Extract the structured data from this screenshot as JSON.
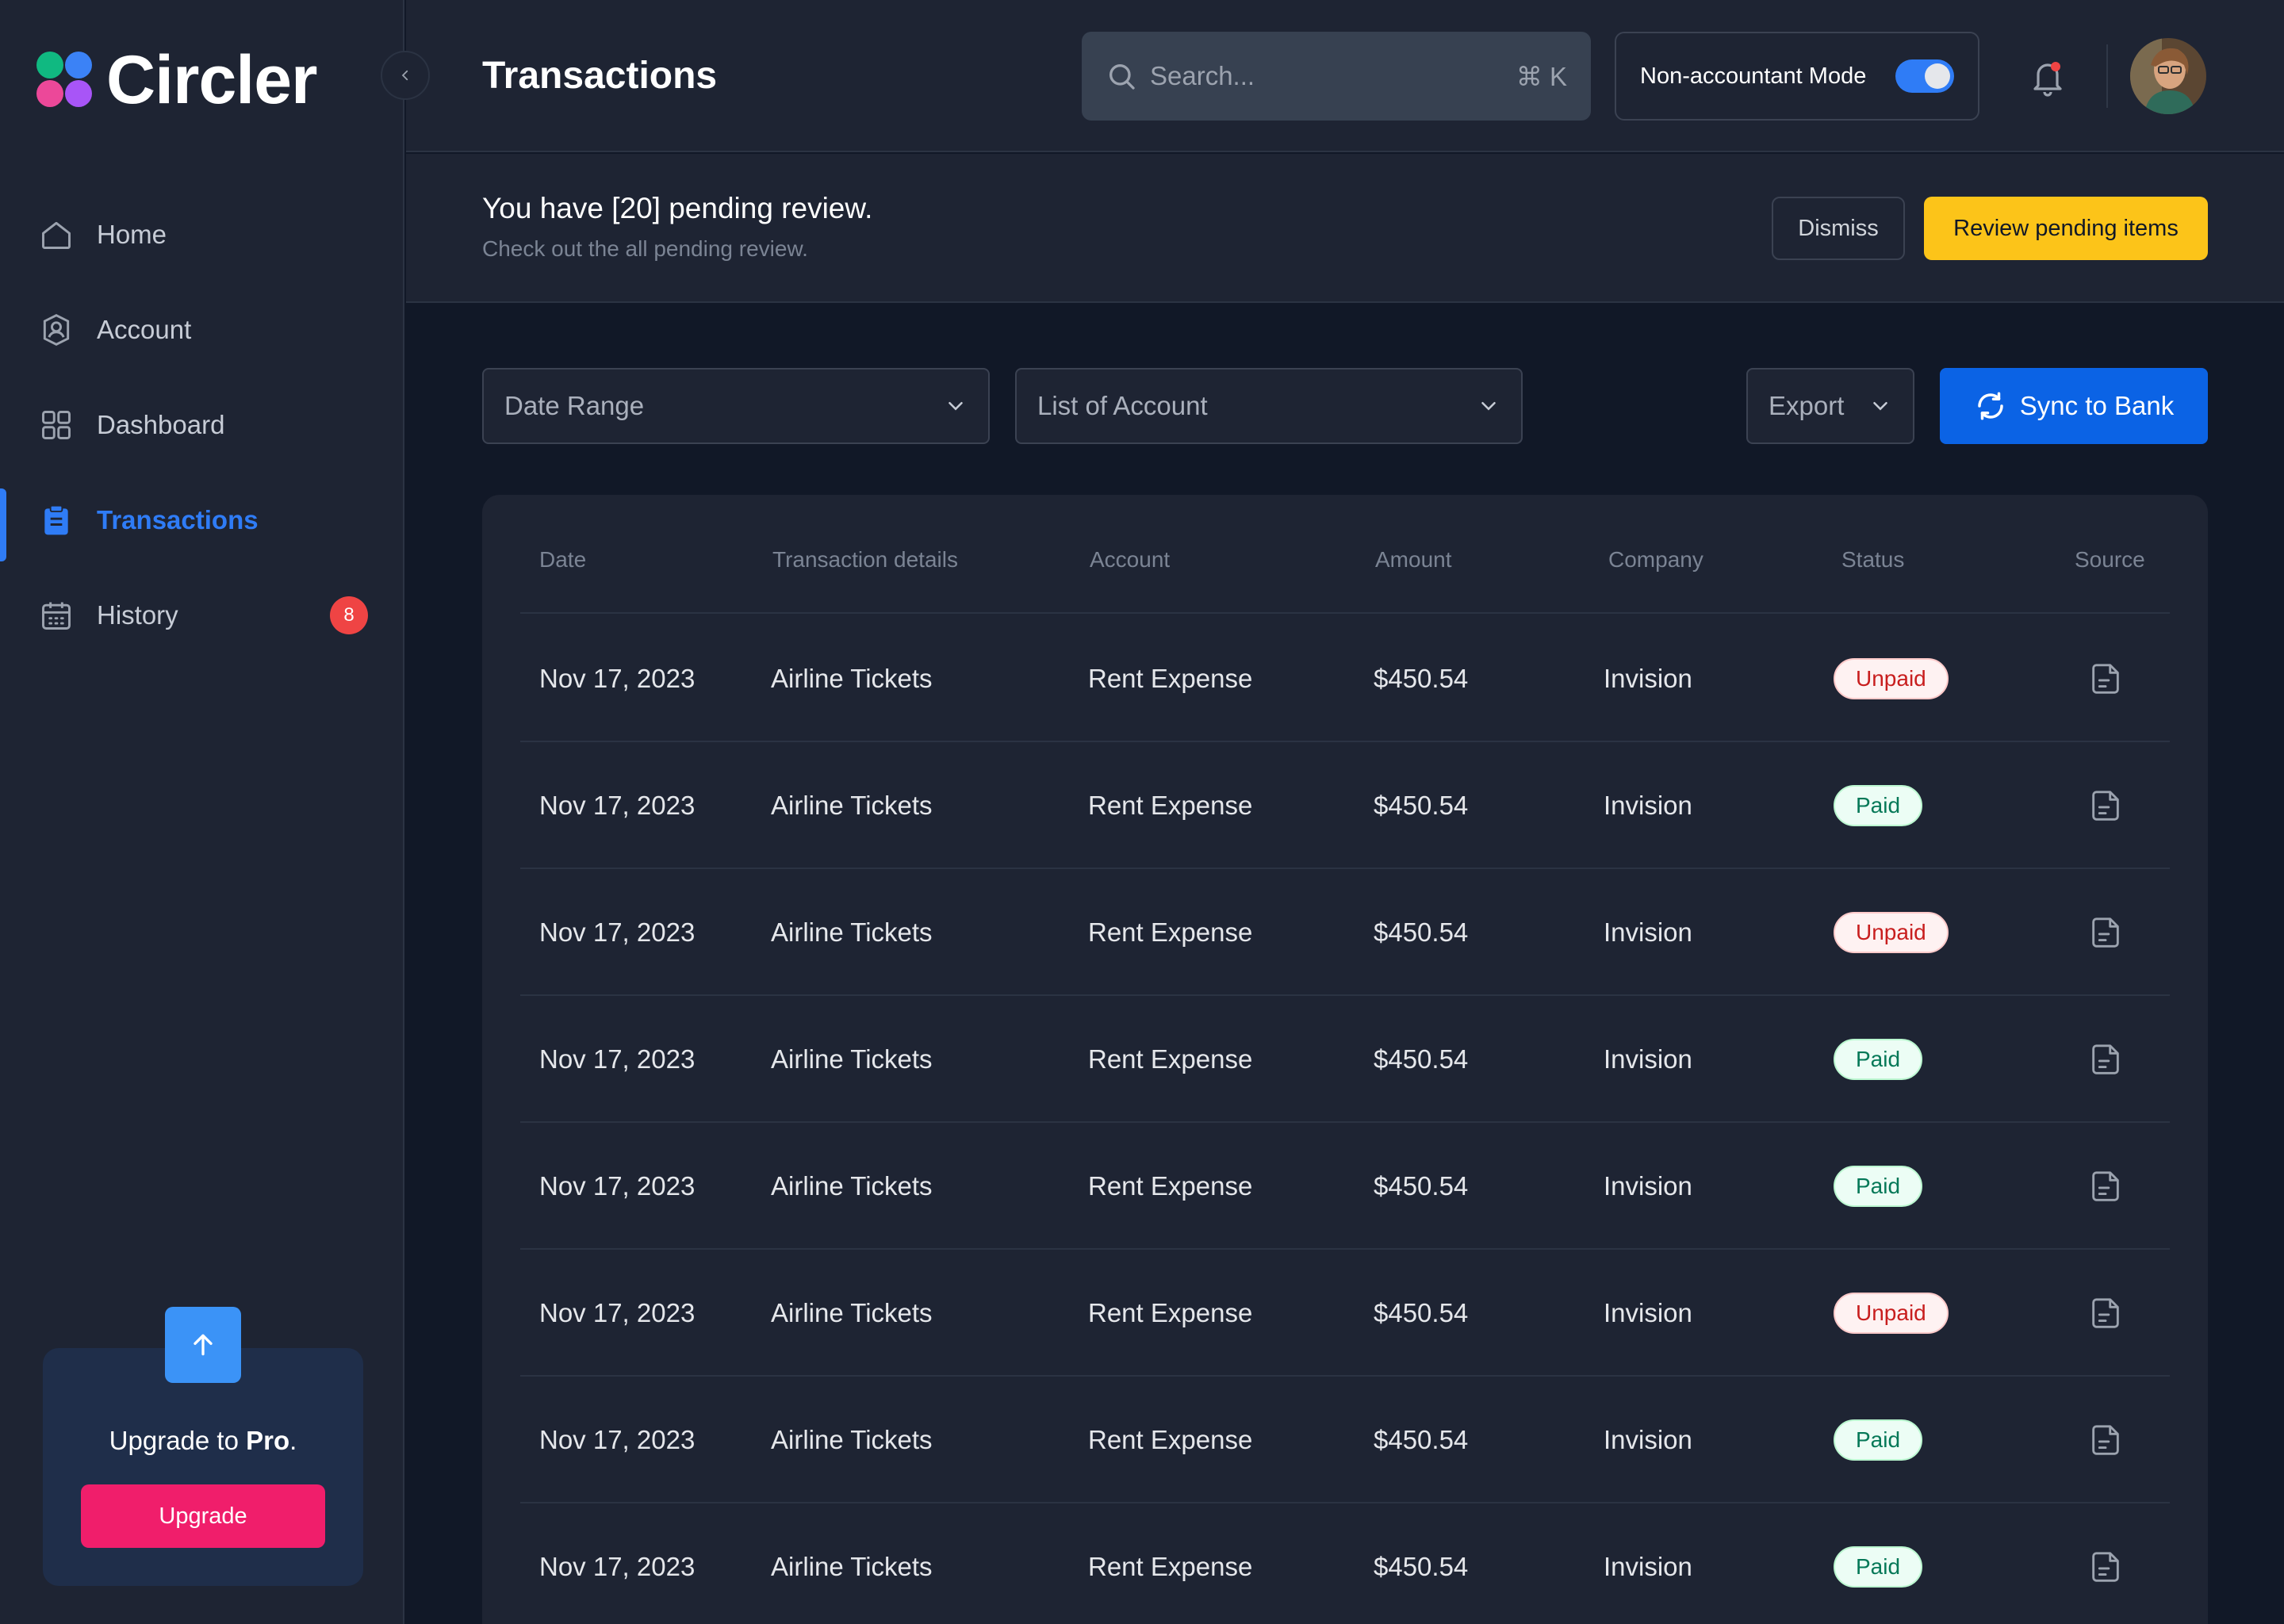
{
  "app": {
    "name": "Circler"
  },
  "sidebar": {
    "items": [
      {
        "label": "Home",
        "icon": "home-icon",
        "active": false
      },
      {
        "label": "Account",
        "icon": "user-shield-icon",
        "active": false
      },
      {
        "label": "Dashboard",
        "icon": "grid-icon",
        "active": false
      },
      {
        "label": "Transactions",
        "icon": "clipboard-icon",
        "active": true
      },
      {
        "label": "History",
        "icon": "calendar-icon",
        "active": false,
        "badge": "8"
      }
    ],
    "upgrade": {
      "title_prefix": "Upgrade to ",
      "title_bold": "Pro",
      "title_suffix": ".",
      "button": "Upgrade"
    }
  },
  "header": {
    "title": "Transactions",
    "search_placeholder": "Search...",
    "search_shortcut": "⌘ K",
    "mode_label": "Non-accountant Mode",
    "mode_enabled": true
  },
  "banner": {
    "title": "You have [20] pending review.",
    "subtitle": "Check out the all pending review.",
    "dismiss": "Dismiss",
    "review": "Review pending items"
  },
  "filters": {
    "date_range": "Date Range",
    "account": "List of Account",
    "export": "Export",
    "sync": "Sync to Bank"
  },
  "table": {
    "columns": [
      "Date",
      "Transaction details",
      "Account",
      "Amount",
      "Company",
      "Status",
      "Source"
    ],
    "rows": [
      {
        "date": "Nov 17, 2023",
        "details": "Airline Tickets",
        "account": "Rent Expense",
        "amount": "$450.54",
        "company": "Invision",
        "status": "Unpaid"
      },
      {
        "date": "Nov 17, 2023",
        "details": "Airline Tickets",
        "account": "Rent Expense",
        "amount": "$450.54",
        "company": "Invision",
        "status": "Paid"
      },
      {
        "date": "Nov 17, 2023",
        "details": "Airline Tickets",
        "account": "Rent Expense",
        "amount": "$450.54",
        "company": "Invision",
        "status": "Unpaid"
      },
      {
        "date": "Nov 17, 2023",
        "details": "Airline Tickets",
        "account": "Rent Expense",
        "amount": "$450.54",
        "company": "Invision",
        "status": "Paid"
      },
      {
        "date": "Nov 17, 2023",
        "details": "Airline Tickets",
        "account": "Rent Expense",
        "amount": "$450.54",
        "company": "Invision",
        "status": "Paid"
      },
      {
        "date": "Nov 17, 2023",
        "details": "Airline Tickets",
        "account": "Rent Expense",
        "amount": "$450.54",
        "company": "Invision",
        "status": "Unpaid"
      },
      {
        "date": "Nov 17, 2023",
        "details": "Airline Tickets",
        "account": "Rent Expense",
        "amount": "$450.54",
        "company": "Invision",
        "status": "Paid"
      },
      {
        "date": "Nov 17, 2023",
        "details": "Airline Tickets",
        "account": "Rent Expense",
        "amount": "$450.54",
        "company": "Invision",
        "status": "Paid"
      }
    ]
  },
  "colors": {
    "accent": "#2f7cf6",
    "sync_button": "#0b63e5",
    "review_button": "#fcc419",
    "upgrade_button": "#f01e6b",
    "logo_dots": [
      "#10b981",
      "#3b82f6",
      "#ec4899",
      "#a855f7"
    ]
  }
}
